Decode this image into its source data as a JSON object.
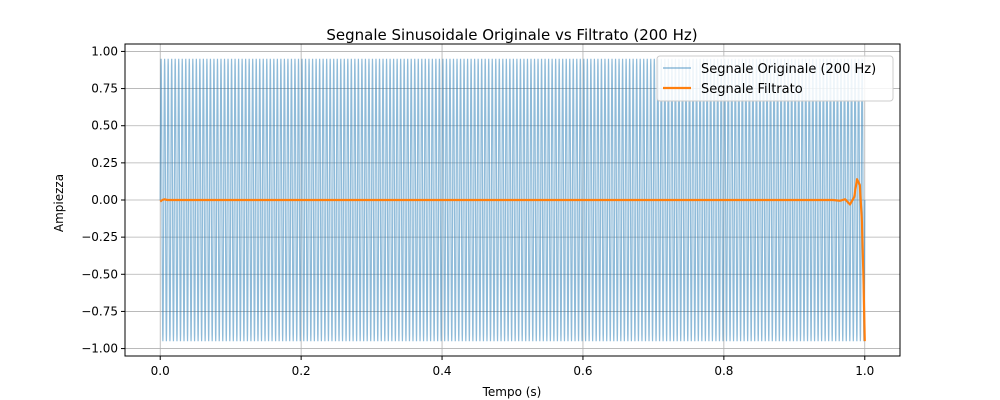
{
  "chart_data": {
    "type": "line",
    "title": "Segnale Sinusoidale Originale vs Filtrato (200 Hz)",
    "xlabel": "Tempo (s)",
    "ylabel": "Ampiezza",
    "xlim": [
      -0.05,
      1.05
    ],
    "ylim": [
      -1.05,
      1.05
    ],
    "x_ticks": [
      0.0,
      0.2,
      0.4,
      0.6,
      0.8,
      1.0
    ],
    "x_tick_labels": [
      "0.0",
      "0.2",
      "0.4",
      "0.6",
      "0.8",
      "1.0"
    ],
    "y_ticks": [
      -1.0,
      -0.75,
      -0.5,
      -0.25,
      0.0,
      0.25,
      0.5,
      0.75,
      1.0
    ],
    "y_tick_labels": [
      "−1.00",
      "−0.75",
      "−0.50",
      "−0.25",
      "0.00",
      "0.25",
      "0.50",
      "0.75",
      "1.00"
    ],
    "grid": true,
    "legend_position": "top-right",
    "series": [
      {
        "name": "Segnale Originale (200 Hz)",
        "color": "#1f77b4",
        "opacity": 0.5,
        "function": "sine",
        "frequency_hz": 200,
        "amplitude": 0.951,
        "x_start": 0.0,
        "x_end": 1.0
      },
      {
        "name": "Segnale Filtrato",
        "color": "#ff7f0e",
        "x": [
          0.0,
          0.003,
          0.006,
          0.01,
          0.9,
          0.955,
          0.965,
          0.972,
          0.979,
          0.985,
          0.989,
          0.993,
          0.996,
          0.998,
          1.0
        ],
        "y": [
          -0.01,
          0.0,
          0.005,
          0.0,
          0.0,
          0.0,
          -0.005,
          0.005,
          -0.03,
          0.02,
          0.14,
          0.1,
          -0.15,
          -0.5,
          -0.95
        ]
      }
    ]
  }
}
